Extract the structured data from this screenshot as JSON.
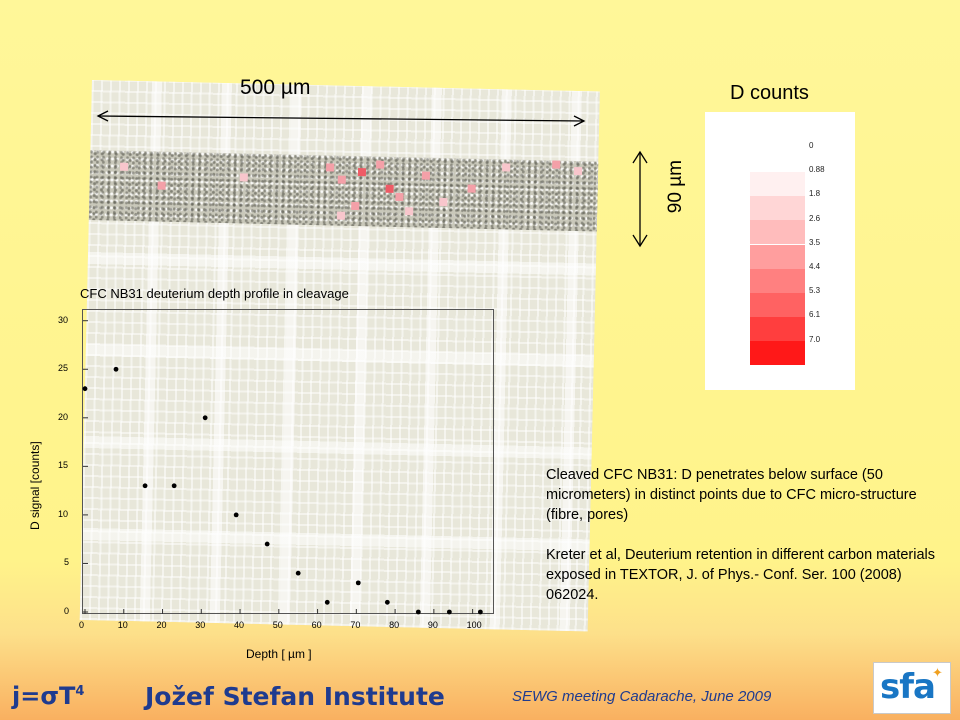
{
  "scale_label": "500 µm",
  "height_label": "90 µm",
  "legend": {
    "title": "D counts",
    "levels": [
      "0",
      "0.88",
      "1.8",
      "2.6",
      "3.5",
      "4.4",
      "5.3",
      "6.1",
      "7.0"
    ],
    "colors": [
      "#fff0f0",
      "#ffd6d6",
      "#ffbcbc",
      "#ff9e9e",
      "#ff8080",
      "#ff6262",
      "#ff3e3e",
      "#ff1818"
    ]
  },
  "chart_data": {
    "type": "scatter",
    "title": "CFC NB31 deuterium depth profile in cleavage",
    "xlabel": "Depth  [ µm ]",
    "ylabel": "D signal [counts]",
    "xlim": [
      0,
      105
    ],
    "ylim": [
      0,
      31
    ],
    "xticks": [
      0,
      10,
      20,
      30,
      40,
      50,
      60,
      70,
      80,
      90,
      100
    ],
    "yticks": [
      0,
      5,
      10,
      15,
      20,
      25,
      30
    ],
    "x": [
      0,
      8,
      15.5,
      23,
      31,
      39,
      47,
      55,
      62.5,
      70.5,
      78,
      86,
      94,
      102
    ],
    "y": [
      23,
      25,
      13,
      13,
      20,
      10,
      7,
      4,
      1,
      3,
      1,
      0,
      0,
      0
    ],
    "marker_color": "#000000"
  },
  "caption": {
    "p1": "Cleaved CFC NB31: D penetrates below surface (50 micrometers) in distinct points due to CFC micro-structure (fibre, pores)",
    "p2": "Kreter et al, Deuterium retention in different carbon materials exposed in TEXTOR, J. of Phys.- Conf. Ser. 100 (2008) 062024."
  },
  "footer": {
    "formula": "j=σT",
    "formula_sup": "4",
    "institute": "Jožef Stefan Institute",
    "meeting": "SEWG meeting Cadarache, June 2009",
    "logo_text": "sfa",
    "logo_star": "✦"
  }
}
